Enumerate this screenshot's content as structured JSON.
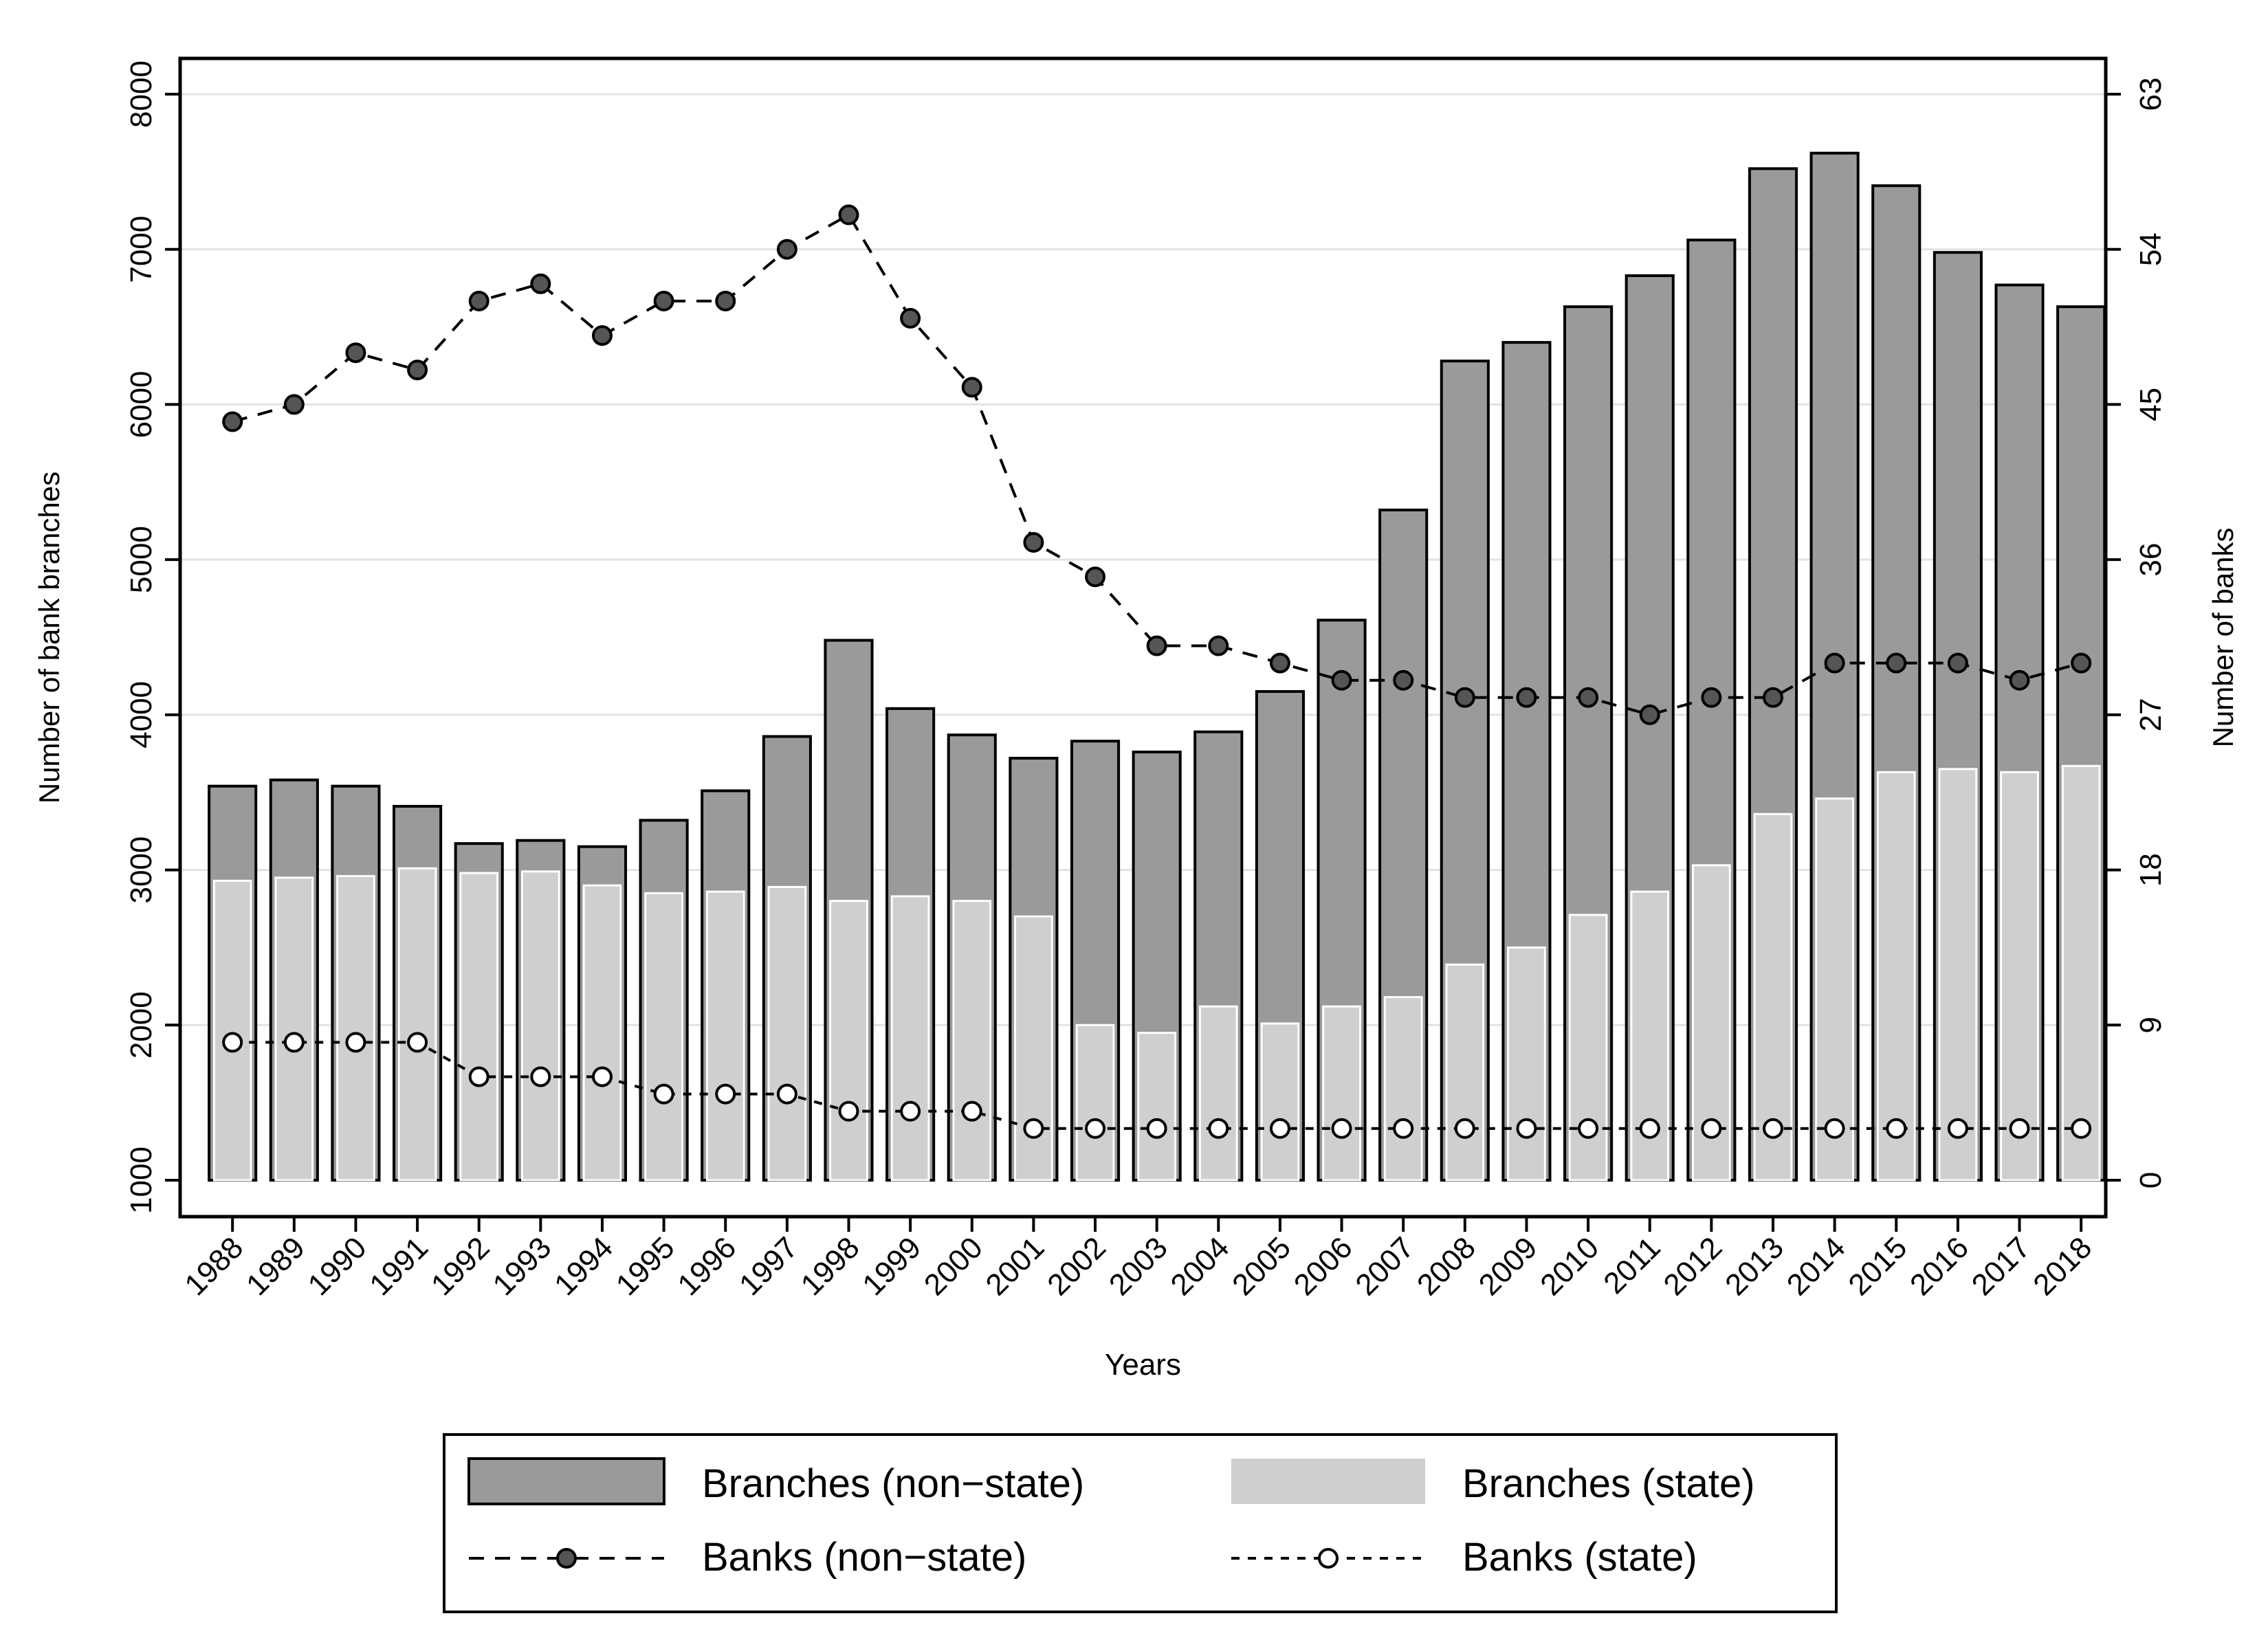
{
  "chart_data": {
    "type": "bar",
    "title": "",
    "xlabel": "Years",
    "ylabel_left": "Number of bank branches",
    "ylabel_right": "Number of banks",
    "ylim_left": [
      1000,
      8000
    ],
    "yticks_left": [
      1000,
      2000,
      3000,
      4000,
      5000,
      6000,
      7000,
      8000
    ],
    "ylim_right": [
      0,
      63
    ],
    "yticks_right": [
      0,
      9,
      18,
      27,
      36,
      45,
      54,
      63
    ],
    "grid": true,
    "legend_position": "bottom",
    "categories": [
      "1988",
      "1989",
      "1990",
      "1991",
      "1992",
      "1993",
      "1994",
      "1995",
      "1996",
      "1997",
      "1998",
      "1999",
      "2000",
      "2001",
      "2002",
      "2003",
      "2004",
      "2005",
      "2006",
      "2007",
      "2008",
      "2009",
      "2010",
      "2011",
      "2012",
      "2013",
      "2014",
      "2015",
      "2016",
      "2017",
      "2018"
    ],
    "series": [
      {
        "name": "Branches (non−state)",
        "type": "bar",
        "axis": "left",
        "color": "#9a9a9a",
        "values": [
          3540,
          3580,
          3540,
          3410,
          3170,
          3190,
          3150,
          3320,
          3510,
          3860,
          4480,
          4040,
          3870,
          3720,
          3830,
          3760,
          3890,
          4150,
          4610,
          5320,
          6280,
          6400,
          6630,
          6830,
          7060,
          7520,
          7620,
          7410,
          6980,
          6770,
          6630
        ]
      },
      {
        "name": "Branches (state)",
        "type": "bar",
        "axis": "left",
        "color": "#cfcfcf",
        "values": [
          2930,
          2950,
          2960,
          3010,
          2980,
          2990,
          2900,
          2850,
          2860,
          2890,
          2800,
          2830,
          2800,
          2700,
          2000,
          1950,
          2120,
          2010,
          2120,
          2180,
          2390,
          2500,
          2710,
          2860,
          3030,
          3360,
          3460,
          3630,
          3650,
          3630,
          3670
        ]
      },
      {
        "name": "Banks (non−state)",
        "type": "line",
        "axis": "right",
        "color": "#555555",
        "values": [
          44,
          45,
          48,
          47,
          51,
          52,
          49,
          51,
          51,
          54,
          56,
          50,
          46,
          37,
          35,
          31,
          31,
          30,
          29,
          29,
          28,
          28,
          28,
          27,
          28,
          28,
          30,
          30,
          30,
          29,
          30
        ]
      },
      {
        "name": "Banks (state)",
        "type": "line",
        "axis": "right",
        "color": "#ffffff",
        "values": [
          8,
          8,
          8,
          8,
          6,
          6,
          6,
          5,
          5,
          5,
          4,
          4,
          4,
          3,
          3,
          3,
          3,
          3,
          3,
          3,
          3,
          3,
          3,
          3,
          3,
          3,
          3,
          3,
          3,
          3,
          3
        ]
      }
    ]
  }
}
